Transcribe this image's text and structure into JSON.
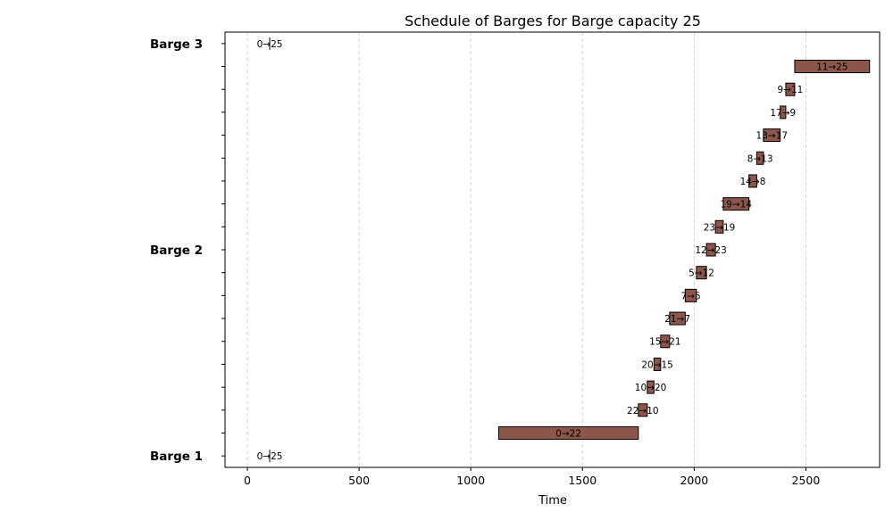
{
  "chart_data": {
    "type": "gantt",
    "title": "Schedule of Barges for Barge capacity 25",
    "xlabel": "Time",
    "ylabel": "",
    "xlim": [
      -100,
      2830
    ],
    "ylim": [
      0.5,
      19.5
    ],
    "xticks": [
      0,
      500,
      1000,
      1500,
      2000,
      2500
    ],
    "grid": "x-dashed",
    "bar_color": "#8c564b",
    "row_labels": [
      {
        "text": "Barge 1",
        "row": 0
      },
      {
        "text": "Barge 2",
        "row": 9
      },
      {
        "text": "Barge 3",
        "row": 18
      }
    ],
    "tasks": [
      {
        "label": "0→25",
        "row": 0,
        "start": 100,
        "end": 100
      },
      {
        "label": "0→22",
        "row": 1,
        "start": 1125,
        "end": 1750
      },
      {
        "label": "22→10",
        "row": 2,
        "start": 1750,
        "end": 1790
      },
      {
        "label": "10→20",
        "row": 3,
        "start": 1790,
        "end": 1820
      },
      {
        "label": "20→15",
        "row": 4,
        "start": 1820,
        "end": 1850
      },
      {
        "label": "15→21",
        "row": 5,
        "start": 1850,
        "end": 1890
      },
      {
        "label": "21→7",
        "row": 6,
        "start": 1890,
        "end": 1960
      },
      {
        "label": "7→5",
        "row": 7,
        "start": 1960,
        "end": 2010
      },
      {
        "label": "5→12",
        "row": 8,
        "start": 2010,
        "end": 2055
      },
      {
        "label": "12→23",
        "row": 9,
        "start": 2055,
        "end": 2095
      },
      {
        "label": "23→19",
        "row": 10,
        "start": 2095,
        "end": 2130
      },
      {
        "label": "19→14",
        "row": 11,
        "start": 2130,
        "end": 2245
      },
      {
        "label": "14→8",
        "row": 12,
        "start": 2245,
        "end": 2280
      },
      {
        "label": "8→13",
        "row": 13,
        "start": 2280,
        "end": 2310
      },
      {
        "label": "13→17",
        "row": 14,
        "start": 2310,
        "end": 2385
      },
      {
        "label": "17→9",
        "row": 15,
        "start": 2385,
        "end": 2410
      },
      {
        "label": "9→11",
        "row": 16,
        "start": 2410,
        "end": 2450
      },
      {
        "label": "11→25",
        "row": 17,
        "start": 2450,
        "end": 2785
      },
      {
        "label": "0→25",
        "row": 18,
        "start": 100,
        "end": 100
      }
    ]
  }
}
